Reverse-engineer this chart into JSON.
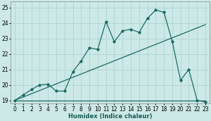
{
  "xlabel": "Humidex (Indice chaleur)",
  "bg_color": "#cce9e7",
  "grid_color": "#aed4d2",
  "line_color": "#1a6b65",
  "xlim": [
    -0.5,
    23.5
  ],
  "ylim": [
    18.8,
    25.4
  ],
  "xticks": [
    0,
    1,
    2,
    3,
    4,
    5,
    6,
    7,
    8,
    9,
    10,
    11,
    12,
    13,
    14,
    15,
    16,
    17,
    18,
    19,
    20,
    21,
    22,
    23
  ],
  "yticks": [
    19,
    20,
    21,
    22,
    23,
    24,
    25
  ],
  "line1_x": [
    0,
    1,
    2,
    3,
    4,
    5,
    6,
    7,
    8,
    9,
    10,
    11,
    12,
    13,
    14,
    15,
    16,
    17,
    18,
    19,
    20,
    21,
    22,
    23
  ],
  "line1_y": [
    19.0,
    19.35,
    19.7,
    20.0,
    20.05,
    19.6,
    19.6,
    20.85,
    21.55,
    22.4,
    22.3,
    24.1,
    22.8,
    23.5,
    23.6,
    23.4,
    24.3,
    24.85,
    24.7,
    22.8,
    20.3,
    21.0,
    19.0,
    18.9
  ],
  "line2_x": [
    0,
    23
  ],
  "line2_y": [
    19.0,
    19.0
  ],
  "line3_x": [
    0,
    23
  ],
  "line3_y": [
    19.0,
    23.9
  ],
  "xlabel_color": "#1a5a55",
  "xlabel_fontsize": 6.0,
  "tick_fontsize": 5.5,
  "lw": 0.9,
  "marker_size": 2.8
}
